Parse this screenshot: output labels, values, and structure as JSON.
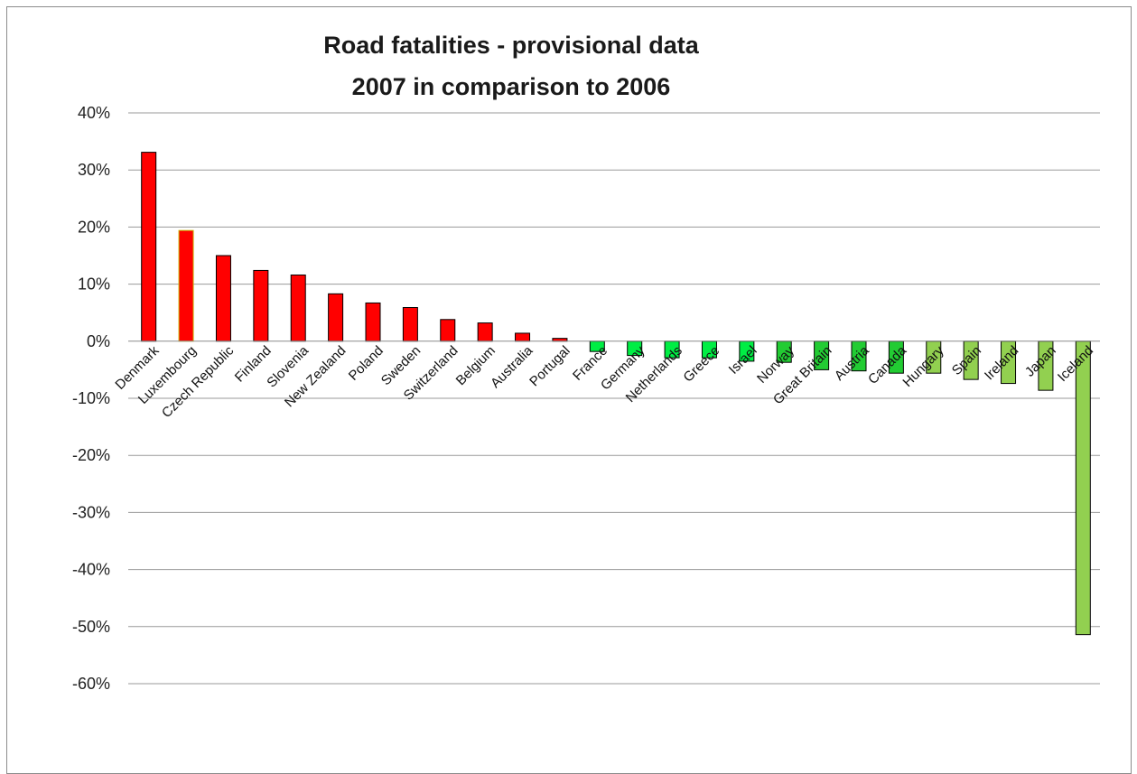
{
  "chart_data": {
    "type": "bar",
    "title_lines": [
      "Road fatalities - provisional data",
      "2007 in comparison to 2006"
    ],
    "xlabel": "",
    "ylabel": "",
    "ylim": [
      -60,
      40
    ],
    "yticks": [
      40,
      30,
      20,
      10,
      0,
      -10,
      -20,
      -30,
      -40,
      -50,
      -60
    ],
    "ytick_labels": [
      "40%",
      "30%",
      "20%",
      "10%",
      "0%",
      "-10%",
      "-20%",
      "-30%",
      "-40%",
      "-50%",
      "-60%"
    ],
    "grid": true,
    "legend": "none",
    "categories": [
      "Denmark",
      "Luxembourg",
      "Czech Republic",
      "Finland",
      "Slovenia",
      "New Zealand",
      "Poland",
      "Sweden",
      "Switzerland",
      "Belgium",
      "Australia",
      "Portugal",
      "France",
      "Germany",
      "Netherlands",
      "Greece",
      "Israel",
      "Norway",
      "Great Britain",
      "Austria",
      "Canada",
      "Hungary",
      "Spain",
      "Ireland",
      "Japan",
      "Iceland"
    ],
    "values": [
      33.1,
      19.4,
      15.0,
      12.4,
      11.6,
      8.3,
      6.7,
      5.9,
      3.8,
      3.2,
      1.4,
      0.5,
      -1.8,
      -2.5,
      -2.9,
      -2.9,
      -3.5,
      -3.7,
      -5.0,
      -5.2,
      -5.6,
      -5.6,
      -6.7,
      -7.4,
      -8.6,
      -51.4
    ],
    "colors": [
      "#ff0000",
      "#ff0000",
      "#ff0000",
      "#ff0000",
      "#ff0000",
      "#ff0000",
      "#ff0000",
      "#ff0000",
      "#ff0000",
      "#ff0000",
      "#ff0000",
      "#ff0000",
      "#00ee44",
      "#00ee44",
      "#00ee44",
      "#00ee44",
      "#00ee44",
      "#22cc33",
      "#22cc33",
      "#22cc33",
      "#22cc33",
      "#92d050",
      "#92d050",
      "#92d050",
      "#92d050",
      "#92d050"
    ],
    "outline_colors": [
      "#000000",
      "#c8b400",
      "#000000",
      "#000000",
      "#000000",
      "#000000",
      "#000000",
      "#000000",
      "#000000",
      "#000000",
      "#000000",
      "#000000",
      "#000000",
      "#000000",
      "#000000",
      "#000000",
      "#000000",
      "#000000",
      "#000000",
      "#000000",
      "#000000",
      "#000000",
      "#000000",
      "#000000",
      "#000000",
      "#000000"
    ]
  }
}
